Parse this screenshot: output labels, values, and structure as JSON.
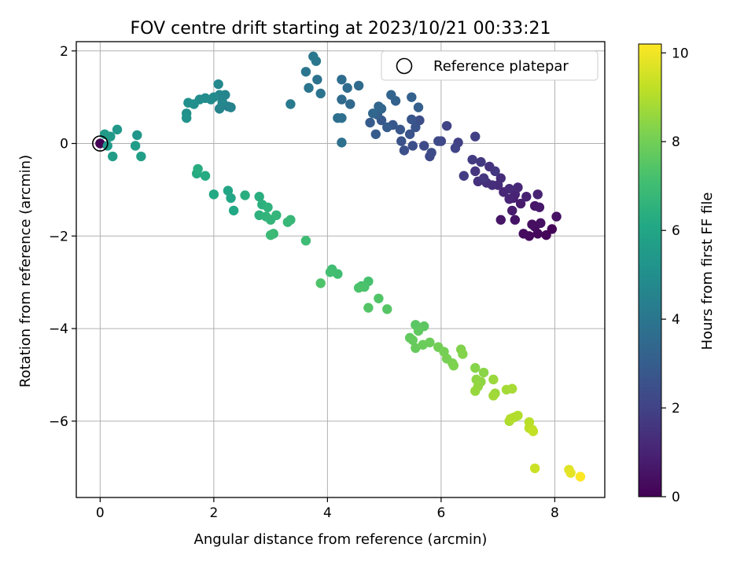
{
  "chart_data": {
    "type": "scatter",
    "title": "FOV centre drift starting at 2023/10/21 00:33:21",
    "xlabel": "Angular distance from reference (arcmin)",
    "ylabel": "Rotation from reference (arcmin)",
    "xlim": [
      -0.42,
      8.88
    ],
    "ylim": [
      -7.65,
      2.2
    ],
    "xticks": [
      0,
      2,
      4,
      6,
      8
    ],
    "xtick_labels": [
      "0",
      "2",
      "4",
      "6",
      "8"
    ],
    "yticks": [
      2,
      0,
      -2,
      -4,
      -6
    ],
    "ytick_labels": [
      "2",
      "0",
      "−2",
      "−4",
      "−6"
    ],
    "grid": true,
    "legend": {
      "position": "top-right",
      "label": "Reference platepar",
      "marker": "open-circle"
    },
    "reference_point": {
      "x": 0,
      "y": 0
    },
    "colorbar": {
      "label": "Hours from first FF file",
      "colormap": "viridis",
      "range": [
        0,
        10.2
      ],
      "ticks": [
        0,
        2,
        4,
        6,
        8,
        10
      ],
      "tick_labels": [
        "0",
        "2",
        "4",
        "6",
        "8",
        "10"
      ]
    },
    "points": [
      [
        0,
        0,
        0.0
      ],
      [
        7.95,
        -1.85,
        0.1
      ],
      [
        7.85,
        -1.98,
        0.15
      ],
      [
        7.7,
        -1.95,
        0.2
      ],
      [
        7.55,
        -2.0,
        0.25
      ],
      [
        7.45,
        -1.95,
        0.3
      ],
      [
        7.65,
        -1.8,
        0.35
      ],
      [
        7.6,
        -1.75,
        0.4
      ],
      [
        7.75,
        -1.72,
        0.45
      ],
      [
        8.03,
        -1.58,
        0.5
      ],
      [
        7.3,
        -1.65,
        0.55
      ],
      [
        7.05,
        -1.65,
        0.6
      ],
      [
        7.65,
        -1.35,
        0.65
      ],
      [
        7.73,
        -1.38,
        0.7
      ],
      [
        7.4,
        -1.3,
        0.75
      ],
      [
        7.25,
        -1.45,
        0.8
      ],
      [
        7.27,
        -1.18,
        0.85
      ],
      [
        7.5,
        -1.15,
        0.9
      ],
      [
        7.7,
        -1.1,
        0.95
      ],
      [
        7.3,
        -1.1,
        1.0
      ],
      [
        7.2,
        -1.2,
        1.05
      ],
      [
        7.1,
        -1.05,
        1.1
      ],
      [
        7.35,
        -0.95,
        1.15
      ],
      [
        7.2,
        -0.98,
        1.2
      ],
      [
        7.0,
        -0.9,
        1.25
      ],
      [
        7.05,
        -0.75,
        1.3
      ],
      [
        6.9,
        -0.9,
        1.35
      ],
      [
        6.8,
        -0.85,
        1.4
      ],
      [
        6.65,
        -0.82,
        1.45
      ],
      [
        6.85,
        -0.5,
        1.5
      ],
      [
        6.6,
        -0.6,
        1.55
      ],
      [
        6.75,
        -0.75,
        1.6
      ],
      [
        6.95,
        -0.6,
        1.65
      ],
      [
        6.7,
        -0.4,
        1.7
      ],
      [
        6.55,
        -0.35,
        1.75
      ],
      [
        6.4,
        -0.7,
        1.8
      ],
      [
        6.6,
        0.15,
        1.9
      ],
      [
        6.3,
        0.02,
        1.95
      ],
      [
        6.1,
        0.38,
        2.0
      ],
      [
        6.25,
        -0.1,
        2.05
      ],
      [
        6.0,
        0.05,
        2.1
      ],
      [
        5.8,
        -0.28,
        2.2
      ],
      [
        5.95,
        0.05,
        2.25
      ],
      [
        5.7,
        -0.05,
        2.3
      ],
      [
        5.83,
        -0.2,
        2.35
      ],
      [
        5.62,
        0.5,
        2.4
      ],
      [
        5.5,
        -0.05,
        2.45
      ],
      [
        5.35,
        -0.15,
        2.5
      ],
      [
        5.3,
        0.05,
        2.55
      ],
      [
        5.45,
        0.2,
        2.6
      ],
      [
        5.55,
        0.35,
        2.65
      ],
      [
        5.48,
        0.52,
        2.7
      ],
      [
        5.28,
        0.3,
        2.75
      ],
      [
        5.15,
        0.4,
        2.8
      ],
      [
        4.95,
        0.5,
        2.85
      ],
      [
        4.75,
        0.45,
        2.9
      ],
      [
        4.85,
        0.2,
        2.95
      ],
      [
        5.05,
        0.35,
        3.0
      ],
      [
        4.88,
        0.62,
        3.05
      ],
      [
        5.6,
        0.78,
        3.1
      ],
      [
        5.48,
        1.0,
        3.15
      ],
      [
        5.2,
        0.92,
        3.2
      ],
      [
        5.12,
        1.05,
        3.25
      ],
      [
        4.95,
        0.75,
        3.3
      ],
      [
        4.9,
        0.8,
        3.35
      ],
      [
        4.8,
        0.65,
        3.4
      ],
      [
        4.4,
        0.85,
        3.45
      ],
      [
        4.25,
        0.95,
        3.5
      ],
      [
        4.55,
        1.25,
        3.55
      ],
      [
        4.35,
        1.2,
        3.6
      ],
      [
        4.25,
        1.38,
        3.65
      ],
      [
        4.18,
        0.55,
        3.7
      ],
      [
        4.25,
        0.55,
        3.75
      ],
      [
        4.25,
        0.02,
        3.8
      ],
      [
        3.82,
        1.38,
        3.85
      ],
      [
        3.88,
        1.08,
        3.9
      ],
      [
        3.67,
        1.2,
        3.95
      ],
      [
        3.62,
        1.55,
        4.0
      ],
      [
        3.8,
        1.78,
        4.05
      ],
      [
        3.75,
        1.88,
        4.1
      ],
      [
        3.35,
        0.85,
        4.15
      ],
      [
        2.25,
        0.8,
        4.4
      ],
      [
        2.15,
        0.85,
        4.45
      ],
      [
        2.3,
        0.78,
        4.5
      ],
      [
        2.1,
        0.75,
        4.55
      ],
      [
        2.2,
        1.05,
        4.6
      ],
      [
        2.15,
        0.9,
        4.65
      ],
      [
        2.1,
        1.05,
        4.7
      ],
      [
        2.08,
        1.28,
        4.75
      ],
      [
        2.0,
        1.0,
        4.8
      ],
      [
        1.95,
        0.95,
        4.85
      ],
      [
        1.85,
        0.98,
        4.9
      ],
      [
        1.75,
        0.95,
        4.95
      ],
      [
        1.65,
        0.85,
        5.0
      ],
      [
        1.55,
        0.88,
        5.05
      ],
      [
        1.52,
        0.65,
        5.1
      ],
      [
        1.52,
        0.55,
        5.15
      ],
      [
        0.65,
        0.18,
        5.3
      ],
      [
        0.3,
        0.3,
        5.4
      ],
      [
        0.18,
        0.15,
        5.45
      ],
      [
        0.13,
        -0.05,
        5.5
      ],
      [
        0.08,
        0.2,
        5.55
      ],
      [
        0.62,
        -0.05,
        5.6
      ],
      [
        0.22,
        -0.28,
        5.65
      ],
      [
        0.72,
        -0.28,
        5.7
      ],
      [
        2.25,
        -1.02,
        6.0
      ],
      [
        2.3,
        -1.18,
        6.05
      ],
      [
        2.35,
        -1.45,
        6.1
      ],
      [
        2.0,
        -1.1,
        6.15
      ],
      [
        1.85,
        -0.7,
        6.2
      ],
      [
        1.7,
        -0.65,
        6.25
      ],
      [
        1.72,
        -0.55,
        6.3
      ],
      [
        2.55,
        -1.12,
        6.35
      ],
      [
        2.8,
        -1.15,
        6.4
      ],
      [
        2.85,
        -1.32,
        6.45
      ],
      [
        2.8,
        -1.55,
        6.5
      ],
      [
        2.95,
        -1.38,
        6.55
      ],
      [
        2.92,
        -1.58,
        6.6
      ],
      [
        3.0,
        -1.65,
        6.65
      ],
      [
        3.1,
        -1.55,
        6.7
      ],
      [
        3.35,
        -1.65,
        6.75
      ],
      [
        3.3,
        -1.7,
        6.8
      ],
      [
        3.05,
        -1.95,
        6.85
      ],
      [
        3.0,
        -1.98,
        6.9
      ],
      [
        3.62,
        -2.1,
        6.95
      ],
      [
        4.08,
        -2.72,
        7.0
      ],
      [
        4.18,
        -2.82,
        7.05
      ],
      [
        4.05,
        -2.78,
        7.1
      ],
      [
        4.6,
        -3.08,
        7.15
      ],
      [
        4.72,
        -2.98,
        7.2
      ],
      [
        4.65,
        -3.1,
        7.25
      ],
      [
        4.55,
        -3.12,
        7.3
      ],
      [
        3.88,
        -3.02,
        7.35
      ],
      [
        4.9,
        -3.35,
        7.4
      ],
      [
        4.72,
        -3.55,
        7.45
      ],
      [
        5.05,
        -3.58,
        7.5
      ],
      [
        5.55,
        -3.92,
        7.55
      ],
      [
        5.7,
        -3.95,
        7.6
      ],
      [
        5.6,
        -4.05,
        7.65
      ],
      [
        5.45,
        -4.2,
        7.7
      ],
      [
        5.5,
        -4.25,
        7.75
      ],
      [
        5.55,
        -4.42,
        7.8
      ],
      [
        5.68,
        -4.35,
        7.85
      ],
      [
        5.8,
        -4.3,
        7.9
      ],
      [
        5.95,
        -4.4,
        8.0
      ],
      [
        6.05,
        -4.5,
        8.05
      ],
      [
        6.1,
        -4.65,
        8.1
      ],
      [
        6.2,
        -4.75,
        8.15
      ],
      [
        6.22,
        -4.8,
        8.2
      ],
      [
        6.35,
        -4.45,
        8.25
      ],
      [
        6.38,
        -4.55,
        8.3
      ],
      [
        6.6,
        -4.85,
        8.35
      ],
      [
        6.75,
        -4.95,
        8.4
      ],
      [
        6.62,
        -5.1,
        8.45
      ],
      [
        6.7,
        -5.15,
        8.5
      ],
      [
        6.65,
        -5.25,
        8.55
      ],
      [
        6.6,
        -5.35,
        8.6
      ],
      [
        6.92,
        -5.1,
        8.65
      ],
      [
        6.95,
        -5.4,
        8.7
      ],
      [
        6.92,
        -5.45,
        8.75
      ],
      [
        7.15,
        -5.32,
        8.8
      ],
      [
        7.25,
        -5.3,
        8.85
      ],
      [
        7.2,
        -6.0,
        8.9
      ],
      [
        7.28,
        -5.92,
        8.95
      ],
      [
        7.35,
        -5.88,
        9.0
      ],
      [
        7.22,
        -5.95,
        9.05
      ],
      [
        7.55,
        -6.02,
        9.1
      ],
      [
        7.55,
        -6.15,
        9.15
      ],
      [
        7.6,
        -6.18,
        9.2
      ],
      [
        7.62,
        -6.22,
        9.25
      ],
      [
        7.65,
        -7.02,
        9.4
      ],
      [
        8.25,
        -7.05,
        9.7
      ],
      [
        8.28,
        -7.12,
        9.8
      ],
      [
        8.45,
        -7.2,
        10.2
      ]
    ]
  }
}
